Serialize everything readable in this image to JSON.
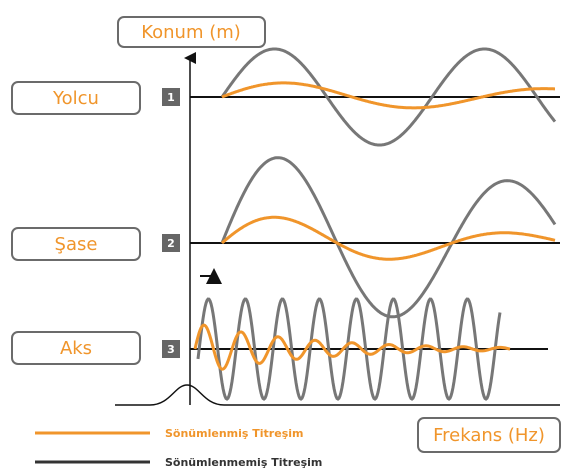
{
  "axes": {
    "y_label": "Konum (m)",
    "x_label": "Frekans (Hz)"
  },
  "rows": [
    {
      "label": "Yolcu",
      "number": "1"
    },
    {
      "label": "Şase",
      "number": "2"
    },
    {
      "label": "Aks",
      "number": "3"
    }
  ],
  "legend": [
    {
      "label": "Sönümlenmiş Titreşim",
      "color": "#f0952b"
    },
    {
      "label": "Sönümlenmemiş Titreşim",
      "color": "#333333"
    }
  ]
}
